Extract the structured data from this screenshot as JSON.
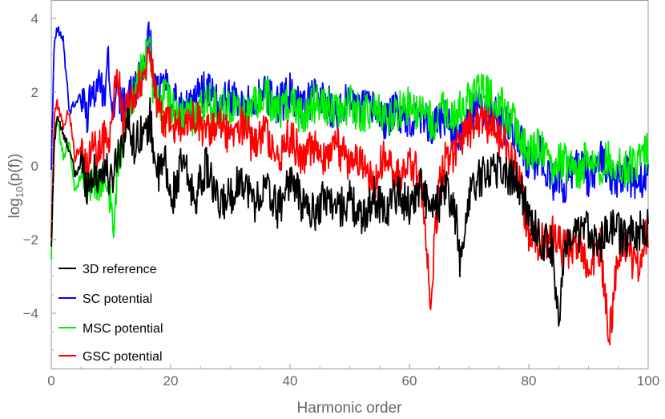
{
  "chart_data": {
    "type": "line",
    "title": "",
    "xlabel": "Harmonic order",
    "ylabel_main": "log",
    "ylabel_sub": "10",
    "ylabel_rest": "(p(f))",
    "xlim": [
      0,
      100
    ],
    "ylim": [
      -5.5,
      4.5
    ],
    "grid": false,
    "legend_placement": "bottom-left",
    "x_ticks": [
      0,
      20,
      40,
      60,
      80,
      100
    ],
    "x_tick_labels": [
      "0",
      "20",
      "40",
      "60",
      "80",
      "100"
    ],
    "y_ticks": [
      -4,
      -2,
      0,
      2,
      4
    ],
    "y_tick_labels": [
      "−4",
      "−2",
      "0",
      "2",
      "4"
    ],
    "series": [
      {
        "name": "3D reference",
        "color": "#000000",
        "x": [
          0,
          0.5,
          1,
          2,
          3,
          4,
          5,
          6,
          7,
          8,
          9,
          10,
          11,
          12,
          13,
          14,
          15,
          16,
          16.5,
          17,
          18,
          19,
          20,
          22,
          24,
          26,
          28,
          30,
          32,
          34,
          36,
          38,
          40,
          42,
          44,
          46,
          48,
          50,
          52,
          54,
          56,
          58,
          60,
          62,
          63.5,
          65,
          66,
          68,
          68.5,
          70,
          72,
          74,
          76,
          78,
          80,
          82,
          84,
          85,
          86,
          88,
          90,
          92,
          94,
          96,
          98,
          100
        ],
        "y": [
          -2.3,
          0.6,
          1.4,
          0.8,
          0.5,
          -0.3,
          0.1,
          -0.5,
          -0.2,
          -0.3,
          0.0,
          -0.5,
          0.3,
          0.7,
          1.2,
          0.5,
          1.0,
          0.8,
          1.4,
          0.6,
          -0.3,
          0.2,
          -1.0,
          0.1,
          -0.9,
          0.0,
          -1.1,
          -0.8,
          -0.3,
          -1.0,
          -0.6,
          -1.2,
          -0.3,
          -1.0,
          -1.3,
          -0.8,
          -1.2,
          -0.9,
          -1.5,
          -0.8,
          -1.2,
          -0.7,
          -1.1,
          -0.5,
          -1.3,
          -1.0,
          -0.6,
          -1.5,
          -2.9,
          -0.7,
          -0.3,
          0.0,
          -0.2,
          -0.4,
          -1.3,
          -2.0,
          -2.2,
          -4.2,
          -2.4,
          -1.9,
          -1.7,
          -2.1,
          -1.6,
          -2.0,
          -1.8,
          -1.7
        ]
      },
      {
        "name": "SC potential",
        "color": "#0000ff",
        "x": [
          0,
          0.5,
          1,
          2,
          3,
          4,
          5,
          6,
          7,
          8,
          9,
          9.5,
          10,
          11,
          12,
          13,
          14,
          15,
          16,
          16.5,
          17,
          18,
          19,
          20,
          22,
          24,
          26,
          28,
          30,
          32,
          34,
          36,
          38,
          40,
          42,
          44,
          46,
          48,
          50,
          52,
          54,
          56,
          58,
          60,
          62,
          64,
          66,
          68,
          70,
          72,
          74,
          76,
          78,
          80,
          82,
          84,
          86,
          88,
          90,
          92,
          94,
          96,
          98,
          100
        ],
        "y": [
          0.0,
          3.3,
          3.7,
          3.4,
          1.5,
          1.7,
          1.9,
          1.4,
          2.0,
          2.3,
          1.9,
          3.4,
          1.4,
          2.0,
          1.6,
          1.8,
          2.1,
          2.6,
          3.0,
          3.6,
          2.3,
          2.0,
          2.4,
          1.9,
          1.5,
          1.8,
          2.1,
          1.6,
          1.9,
          1.5,
          1.8,
          2.0,
          1.6,
          2.0,
          1.5,
          1.9,
          1.7,
          1.4,
          1.8,
          1.5,
          1.6,
          1.2,
          1.5,
          1.3,
          1.4,
          1.0,
          1.4,
          0.6,
          1.4,
          1.6,
          1.5,
          1.1,
          0.9,
          0.0,
          0.3,
          -0.4,
          -0.5,
          0.1,
          -0.3,
          0.2,
          -0.6,
          -0.1,
          -0.5,
          -0.3
        ]
      },
      {
        "name": "MSC potential",
        "color": "#00ee00",
        "x": [
          0,
          0.5,
          1,
          2,
          3,
          4,
          5,
          6,
          7,
          8,
          9,
          10,
          10.5,
          11,
          12,
          13,
          14,
          15,
          16,
          16.5,
          17,
          18,
          19,
          20,
          22,
          24,
          26,
          28,
          30,
          32,
          34,
          36,
          38,
          40,
          42,
          44,
          46,
          48,
          50,
          52,
          54,
          56,
          58,
          60,
          62,
          64,
          66,
          68,
          70,
          72,
          74,
          76,
          78,
          80,
          82,
          84,
          86,
          88,
          90,
          92,
          94,
          96,
          98,
          100
        ],
        "y": [
          -2.5,
          1.0,
          1.2,
          0.3,
          0.6,
          -0.7,
          -0.2,
          -0.3,
          -0.6,
          -0.4,
          -0.5,
          -0.9,
          -2.5,
          0.0,
          0.8,
          1.5,
          2.0,
          2.5,
          3.0,
          3.3,
          2.2,
          1.6,
          2.0,
          1.5,
          1.4,
          1.3,
          1.8,
          1.5,
          1.7,
          1.4,
          1.6,
          1.9,
          1.4,
          1.8,
          1.3,
          1.7,
          1.6,
          1.4,
          1.7,
          1.4,
          1.5,
          1.3,
          1.5,
          1.6,
          1.4,
          1.2,
          1.5,
          1.4,
          1.8,
          2.0,
          1.8,
          1.5,
          1.0,
          0.3,
          0.6,
          0.0,
          0.2,
          -0.3,
          0.3,
          0.0,
          0.2,
          -0.1,
          0.1,
          0.4
        ]
      },
      {
        "name": "GSC potential",
        "color": "#ff0000",
        "x": [
          0,
          0.5,
          1,
          2,
          3,
          4,
          5,
          6,
          7,
          8,
          9,
          10,
          11,
          12,
          13,
          14,
          15,
          16,
          16.5,
          17,
          18,
          19,
          20,
          22,
          24,
          26,
          28,
          30,
          32,
          34,
          36,
          38,
          40,
          42,
          44,
          46,
          48,
          50,
          52,
          54,
          56,
          58,
          60,
          62,
          63.5,
          65,
          66,
          68,
          70,
          72,
          74,
          76,
          78,
          80,
          82,
          84,
          86,
          88,
          90,
          92,
          93.5,
          95,
          96,
          98,
          100
        ],
        "y": [
          -2.0,
          1.4,
          1.7,
          1.1,
          1.5,
          0.2,
          0.6,
          0.1,
          0.4,
          0.5,
          0.7,
          1.0,
          2.8,
          1.2,
          1.8,
          2.0,
          2.3,
          2.8,
          3.2,
          2.6,
          1.5,
          1.0,
          1.2,
          1.1,
          1.3,
          0.9,
          1.4,
          0.7,
          1.1,
          0.5,
          0.9,
          0.3,
          0.8,
          0.2,
          0.6,
          0.1,
          0.5,
          0.0,
          0.3,
          -0.5,
          0.4,
          -0.3,
          0.2,
          -0.5,
          -3.6,
          -0.6,
          0.1,
          0.5,
          1.0,
          1.3,
          1.0,
          0.5,
          0.0,
          -1.8,
          -2.1,
          -1.9,
          -2.3,
          -2.1,
          -2.6,
          -2.2,
          -4.7,
          -2.3,
          -2.0,
          -2.8,
          -1.8
        ]
      }
    ]
  }
}
